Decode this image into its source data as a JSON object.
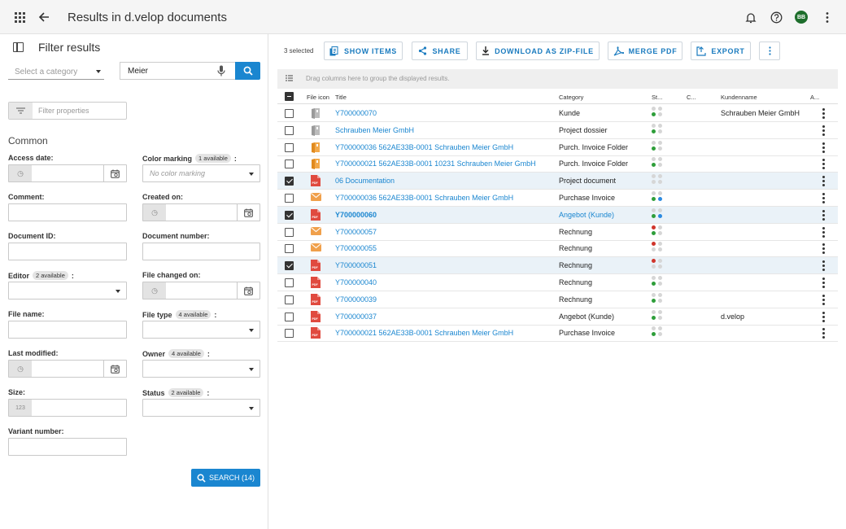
{
  "header": {
    "title": "Results in d.velop documents",
    "avatar": "BB"
  },
  "filter": {
    "title": "Filter results",
    "category_placeholder": "Select a category",
    "search_value": "Meier",
    "filter_properties_placeholder": "Filter properties",
    "section": "Common",
    "fields": {
      "access_date": "Access date:",
      "color_marking": "Color marking",
      "color_marking_badge": "1 available",
      "color_marking_placeholder": "No color marking",
      "comment": "Comment:",
      "created_on": "Created on:",
      "document_id": "Document ID:",
      "document_number": "Document number:",
      "editor": "Editor",
      "editor_badge": "2 available",
      "file_changed_on": "File changed on:",
      "file_name": "File name:",
      "file_type": "File type",
      "file_type_badge": "4 available",
      "last_modified": "Last modified:",
      "owner": "Owner",
      "owner_badge": "4 available",
      "size": "Size:",
      "size_prefix": "123",
      "status": "Status",
      "status_badge": "2 available",
      "variant_number": "Variant number:"
    },
    "colon": ":",
    "search_button": "SEARCH (14)"
  },
  "toolbar": {
    "selected": "3 selected",
    "show_items": "SHOW ITEMS",
    "share": "SHARE",
    "download": "DOWNLOAD AS ZIP-FILE",
    "merge": "MERGE PDF",
    "export": "EXPORT"
  },
  "grouping_hint": "Drag columns here to group the displayed results.",
  "columns": {
    "file_icon": "File icon",
    "title": "Title",
    "category": "Category",
    "status": "St...",
    "c": "C...",
    "kundenname": "Kundenname",
    "actions": "A..."
  },
  "colors": {
    "accent": "#1a86d0",
    "green": "#2e9e3a",
    "red": "#d0352b",
    "blue": "#2b8ae0",
    "grey": "#d6d6d6"
  },
  "rows": [
    {
      "icon": "grey-folder-icon",
      "title": "Y700000070",
      "category": "Kunde",
      "kundenname": "Schrauben Meier GmbH",
      "checked": false,
      "bold": false,
      "cat_link": false,
      "status": [
        "g",
        "g",
        "green",
        "g"
      ]
    },
    {
      "icon": "grey-folder-icon",
      "title": "Schrauben Meier GmbH",
      "category": "Project dossier",
      "kundenname": "",
      "checked": false,
      "bold": false,
      "cat_link": false,
      "status": [
        "g",
        "g",
        "green",
        "g"
      ]
    },
    {
      "icon": "orange-folder-icon",
      "title": "Y700000036 562AE33B-0001 Schrauben Meier GmbH",
      "category": "Purch. Invoice Folder",
      "kundenname": "",
      "checked": false,
      "bold": false,
      "cat_link": false,
      "status": [
        "g",
        "g",
        "green",
        "g"
      ]
    },
    {
      "icon": "orange-folder-icon",
      "title": "Y700000021 562AE33B-0001 10231 Schrauben Meier GmbH",
      "category": "Purch. Invoice Folder",
      "kundenname": "",
      "checked": false,
      "bold": false,
      "cat_link": false,
      "status": [
        "g",
        "g",
        "green",
        "g"
      ]
    },
    {
      "icon": "pdf-icon",
      "title": "06 Documentation",
      "category": "Project document",
      "kundenname": "",
      "checked": true,
      "bold": false,
      "cat_link": false,
      "status": [
        "g",
        "g",
        "g",
        "g"
      ]
    },
    {
      "icon": "mail-icon",
      "title": "Y700000036 562AE33B-0001 Schrauben Meier GmbH",
      "category": "Purchase Invoice",
      "kundenname": "",
      "checked": false,
      "bold": false,
      "cat_link": false,
      "status": [
        "g",
        "g",
        "green",
        "blue"
      ]
    },
    {
      "icon": "pdf-icon",
      "title": "Y700000060",
      "category": "Angebot (Kunde)",
      "kundenname": "",
      "checked": true,
      "bold": true,
      "cat_link": true,
      "status": [
        "g",
        "g",
        "green",
        "blue"
      ]
    },
    {
      "icon": "mail-icon",
      "title": "Y700000057",
      "category": "Rechnung",
      "kundenname": "",
      "checked": false,
      "bold": false,
      "cat_link": false,
      "status": [
        "red",
        "g",
        "green",
        "g"
      ]
    },
    {
      "icon": "mail-icon",
      "title": "Y700000055",
      "category": "Rechnung",
      "kundenname": "",
      "checked": false,
      "bold": false,
      "cat_link": false,
      "status": [
        "red",
        "g",
        "g",
        "g"
      ]
    },
    {
      "icon": "pdf-icon",
      "title": "Y700000051",
      "category": "Rechnung",
      "kundenname": "",
      "checked": true,
      "bold": false,
      "cat_link": false,
      "status": [
        "red",
        "g",
        "g",
        "g"
      ]
    },
    {
      "icon": "pdf-icon",
      "title": "Y700000040",
      "category": "Rechnung",
      "kundenname": "",
      "checked": false,
      "bold": false,
      "cat_link": false,
      "status": [
        "g",
        "g",
        "green",
        "g"
      ]
    },
    {
      "icon": "pdf-icon",
      "title": "Y700000039",
      "category": "Rechnung",
      "kundenname": "",
      "checked": false,
      "bold": false,
      "cat_link": false,
      "status": [
        "g",
        "g",
        "green",
        "g"
      ]
    },
    {
      "icon": "pdf-icon",
      "title": "Y700000037",
      "category": "Angebot (Kunde)",
      "kundenname": "d.velop",
      "checked": false,
      "bold": false,
      "cat_link": false,
      "status": [
        "g",
        "g",
        "green",
        "g"
      ]
    },
    {
      "icon": "pdf-icon",
      "title": "Y700000021 562AE33B-0001 Schrauben Meier GmbH",
      "category": "Purchase Invoice",
      "kundenname": "",
      "checked": false,
      "bold": false,
      "cat_link": false,
      "status": [
        "g",
        "g",
        "green",
        "g"
      ]
    }
  ]
}
